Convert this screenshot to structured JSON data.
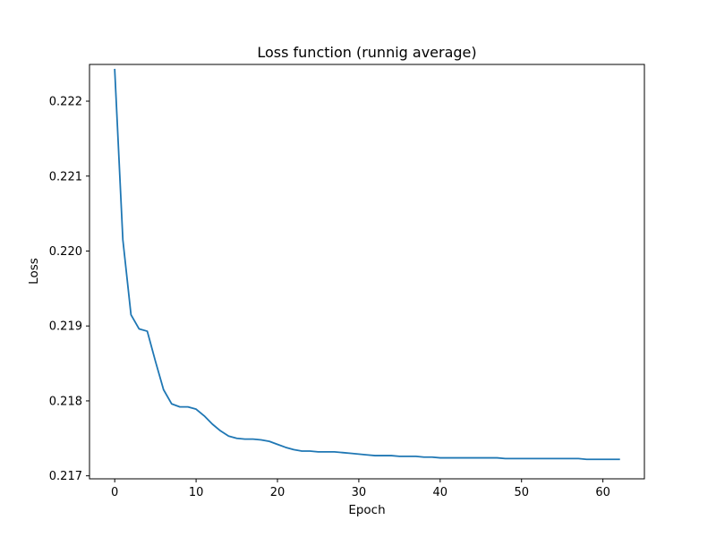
{
  "chart_data": {
    "type": "line",
    "title": "Loss function (runnig average)",
    "xlabel": "Epoch",
    "ylabel": "Loss",
    "xlim": [
      -3.1,
      65.1
    ],
    "ylim": [
      0.21696,
      0.22249
    ],
    "xticks": [
      0,
      10,
      20,
      30,
      40,
      50,
      60
    ],
    "xtick_labels": [
      "0",
      "10",
      "20",
      "30",
      "40",
      "50",
      "60"
    ],
    "yticks": [
      0.217,
      0.218,
      0.219,
      0.22,
      0.221,
      0.222
    ],
    "ytick_labels": [
      "0.217",
      "0.218",
      "0.219",
      "0.220",
      "0.221",
      "0.222"
    ],
    "grid": false,
    "color": "#1f77b4",
    "series": [
      {
        "x": [
          0,
          1,
          2,
          3,
          4,
          5,
          6,
          7,
          8,
          9,
          10,
          11,
          12,
          13,
          14,
          15,
          16,
          17,
          18,
          19,
          20,
          21,
          22,
          23,
          24,
          25,
          26,
          27,
          28,
          29,
          30,
          31,
          32,
          33,
          34,
          35,
          36,
          37,
          38,
          39,
          40,
          41,
          42,
          43,
          44,
          45,
          46,
          47,
          48,
          49,
          50,
          51,
          52,
          53,
          54,
          55,
          56,
          57,
          58,
          59,
          60,
          61,
          62
        ],
        "y": [
          0.22242,
          0.22015,
          0.21915,
          0.21896,
          0.21893,
          0.21853,
          0.21815,
          0.21796,
          0.21792,
          0.21792,
          0.21789,
          0.2178,
          0.21769,
          0.2176,
          0.21753,
          0.2175,
          0.21749,
          0.21749,
          0.21748,
          0.21746,
          0.21742,
          0.21738,
          0.21735,
          0.21733,
          0.21733,
          0.21732,
          0.21732,
          0.21732,
          0.21731,
          0.2173,
          0.21729,
          0.21728,
          0.21727,
          0.21727,
          0.21727,
          0.21726,
          0.21726,
          0.21726,
          0.21725,
          0.21725,
          0.21724,
          0.21724,
          0.21724,
          0.21724,
          0.21724,
          0.21724,
          0.21724,
          0.21724,
          0.21723,
          0.21723,
          0.21723,
          0.21723,
          0.21723,
          0.21723,
          0.21723,
          0.21723,
          0.21723,
          0.21723,
          0.21722,
          0.21722,
          0.21722,
          0.21722,
          0.21722
        ]
      }
    ]
  }
}
